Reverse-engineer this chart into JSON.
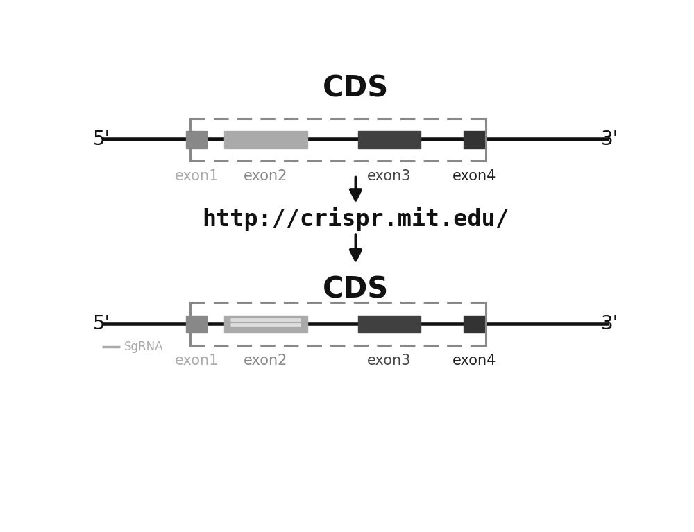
{
  "title1": "CDS",
  "title2": "CDS",
  "url_text": "http://crispr.mit.edu/",
  "five_prime": "5'",
  "three_prime": "3'",
  "sgrna_label": "SgRNA",
  "exon_labels": [
    "exon1",
    "exon2",
    "exon3",
    "exon4"
  ],
  "background_color": "#ffffff",
  "line_color": "#111111",
  "dashed_color": "#888888",
  "exon1_color": "#888888",
  "exon2_color": "#aaaaaa",
  "exon3_color": "#404040",
  "exon4_color": "#333333",
  "exon_label_color1": "#aaaaaa",
  "exon_label_color2": "#888888",
  "exon_label_color3": "#444444",
  "exon_label_color4": "#222222",
  "sgrna_color": "#aaaaaa",
  "title_fontsize": 30,
  "label_fontsize": 15,
  "url_fontsize": 24,
  "prime_fontsize": 20
}
